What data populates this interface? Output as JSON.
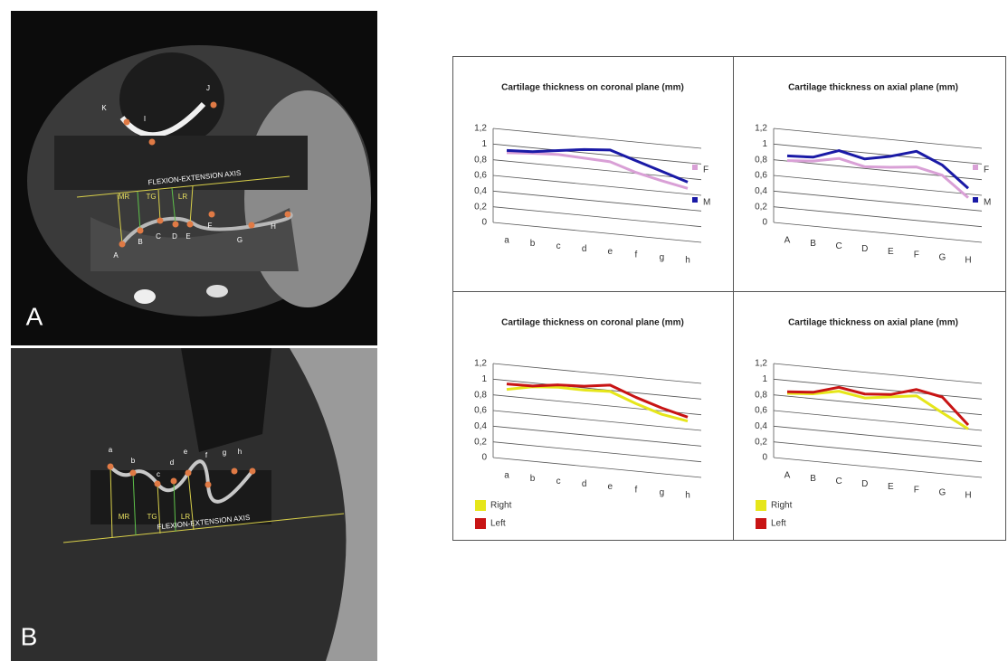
{
  "figure": {
    "panel_a": {
      "label": "A",
      "axis_label": "FLEXION-EXTENSION AXIS",
      "zones": [
        "MR",
        "TG",
        "LR"
      ],
      "points": [
        "K",
        "I",
        "J",
        "A",
        "B",
        "C",
        "D",
        "E",
        "F",
        "G",
        "H"
      ]
    },
    "panel_b": {
      "label": "B",
      "axis_label": "FLEXION-EXTENSION AXIS",
      "zones": [
        "MR",
        "TG",
        "LR"
      ],
      "points": [
        "a",
        "b",
        "c",
        "d",
        "e",
        "f",
        "g",
        "h"
      ]
    }
  },
  "chart_data": [
    {
      "type": "line",
      "title": "Cartilage thickness on coronal plane (mm)",
      "categories": [
        "a",
        "b",
        "c",
        "d",
        "e",
        "f",
        "g",
        "h"
      ],
      "series": [
        {
          "name": "F",
          "color": "#d9a0d6",
          "values": [
            0.82,
            0.85,
            0.87,
            0.86,
            0.85,
            0.75,
            0.68,
            0.62
          ]
        },
        {
          "name": "M",
          "color": "#1a1aa6",
          "values": [
            0.85,
            0.87,
            0.92,
            0.97,
            1.0,
            0.9,
            0.8,
            0.7
          ]
        }
      ],
      "ylim": [
        0,
        1.2
      ],
      "yticks": [
        0,
        {
          "value": 0.2,
          "label": "0,2"
        },
        {
          "value": 0.4,
          "label": "0,4"
        },
        {
          "value": 0.6,
          "label": "0,6"
        },
        {
          "value": 0.8,
          "label": "0,8"
        },
        1,
        {
          "value": 1.2,
          "label": "1,2"
        }
      ],
      "grid": true,
      "legend": "right"
    },
    {
      "type": "line",
      "title": "Cartilage thickness on axial plane (mm)",
      "categories": [
        "A",
        "B",
        "C",
        "D",
        "E",
        "F",
        "G",
        "H"
      ],
      "series": [
        {
          "name": "F",
          "color": "#d9a0d6",
          "values": [
            0.72,
            0.75,
            0.82,
            0.75,
            0.78,
            0.82,
            0.75,
            0.5
          ]
        },
        {
          "name": "M",
          "color": "#1a1aa6",
          "values": [
            0.78,
            0.8,
            0.92,
            0.85,
            0.92,
            1.02,
            0.88,
            0.62
          ]
        }
      ],
      "ylim": [
        0,
        1.2
      ],
      "yticks": [
        0,
        {
          "value": 0.2,
          "label": "0,2"
        },
        {
          "value": 0.4,
          "label": "0,4"
        },
        {
          "value": 0.6,
          "label": "0,6"
        },
        {
          "value": 0.8,
          "label": "0,8"
        },
        1,
        {
          "value": 1.2,
          "label": "1,2"
        }
      ],
      "grid": true,
      "legend": "right"
    },
    {
      "type": "line",
      "title": "Cartilage thickness on coronal plane (mm)",
      "categories": [
        "a",
        "b",
        "c",
        "d",
        "e",
        "f",
        "g",
        "h"
      ],
      "series": [
        {
          "name": "Right",
          "color": "#e6e61a",
          "values": [
            0.8,
            0.87,
            0.9,
            0.9,
            0.92,
            0.8,
            0.7,
            0.65
          ]
        },
        {
          "name": "Left",
          "color": "#c81414",
          "values": [
            0.87,
            0.88,
            0.93,
            0.95,
            1.0,
            0.88,
            0.78,
            0.7
          ]
        }
      ],
      "ylim": [
        0,
        1.2
      ],
      "yticks": [
        0,
        {
          "value": 0.2,
          "label": "0,2"
        },
        {
          "value": 0.4,
          "label": "0,4"
        },
        {
          "value": 0.6,
          "label": "0,6"
        },
        {
          "value": 0.8,
          "label": "0,8"
        },
        1,
        {
          "value": 1.2,
          "label": "1,2"
        }
      ],
      "grid": true,
      "legend": "bottom-left"
    },
    {
      "type": "line",
      "title": "Cartilage thickness on axial plane (mm)",
      "categories": [
        "A",
        "B",
        "C",
        "D",
        "E",
        "F",
        "G",
        "H"
      ],
      "series": [
        {
          "name": "Right",
          "color": "#e6e61a",
          "values": [
            0.75,
            0.78,
            0.85,
            0.8,
            0.85,
            0.9,
            0.72,
            0.55
          ]
        },
        {
          "name": "Left",
          "color": "#c81414",
          "values": [
            0.77,
            0.8,
            0.9,
            0.85,
            0.88,
            0.98,
            0.92,
            0.6
          ]
        }
      ],
      "ylim": [
        0,
        1.2
      ],
      "yticks": [
        0,
        {
          "value": 0.2,
          "label": "0,2"
        },
        {
          "value": 0.4,
          "label": "0,4"
        },
        {
          "value": 0.6,
          "label": "0,6"
        },
        {
          "value": 0.8,
          "label": "0,8"
        },
        1,
        {
          "value": 1.2,
          "label": "1,2"
        }
      ],
      "grid": true,
      "legend": "bottom-left"
    }
  ]
}
